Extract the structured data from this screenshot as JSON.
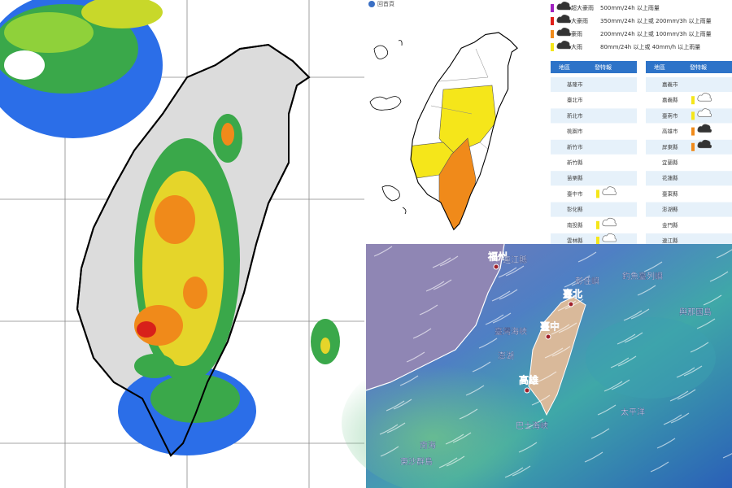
{
  "warning_panel": {
    "home_link": "回首頁",
    "legend": [
      {
        "level": "超大豪雨",
        "criteria": "500mm/24h 以上雨量",
        "color": "#a020c0"
      },
      {
        "level": "大豪雨",
        "criteria": "350mm/24h 以上或 200mm/3h 以上雨量",
        "color": "#e0201a"
      },
      {
        "level": "豪雨",
        "criteria": "200mm/24h 以上或 100mm/3h 以上雨量",
        "color": "#f08a1a"
      },
      {
        "level": "大雨",
        "criteria": "80mm/24h 以上或 40mm/h 以上雨量",
        "color": "#f5e61a"
      }
    ],
    "tables": [
      {
        "headers": [
          "地區",
          "發特報"
        ],
        "rows": [
          {
            "area": "基隆市"
          },
          {
            "area": "臺北市"
          },
          {
            "area": "新北市"
          },
          {
            "area": "桃園市"
          },
          {
            "area": "新竹市"
          },
          {
            "area": "新竹縣"
          },
          {
            "area": "苗栗縣"
          },
          {
            "area": "臺中市",
            "color": "#f5e61a"
          },
          {
            "area": "彰化縣"
          },
          {
            "area": "南投縣",
            "color": "#f5e61a"
          },
          {
            "area": "雲林縣",
            "color": "#f5e61a"
          }
        ]
      },
      {
        "headers": [
          "地區",
          "發特報"
        ],
        "rows": [
          {
            "area": "嘉義市"
          },
          {
            "area": "嘉義縣",
            "color": "#f5e61a"
          },
          {
            "area": "臺南市",
            "color": "#f5e61a"
          },
          {
            "area": "高雄市",
            "color": "#f08a1a"
          },
          {
            "area": "屏東縣",
            "color": "#f08a1a"
          },
          {
            "area": "宜蘭縣"
          },
          {
            "area": "花蓮縣"
          },
          {
            "area": "臺東縣"
          },
          {
            "area": "澎湖縣"
          },
          {
            "area": "金門縣"
          },
          {
            "area": "連江縣"
          }
        ]
      }
    ]
  },
  "wind_map": {
    "labels": [
      "福州",
      "連江縣",
      "彭佳嶼",
      "釣魚臺列嶼",
      "與那國島",
      "臺北",
      "臺中",
      "臺灣海峽",
      "澎湖",
      "高雄",
      "巴士海峽",
      "太平洋",
      "南海",
      "東沙群島"
    ]
  }
}
